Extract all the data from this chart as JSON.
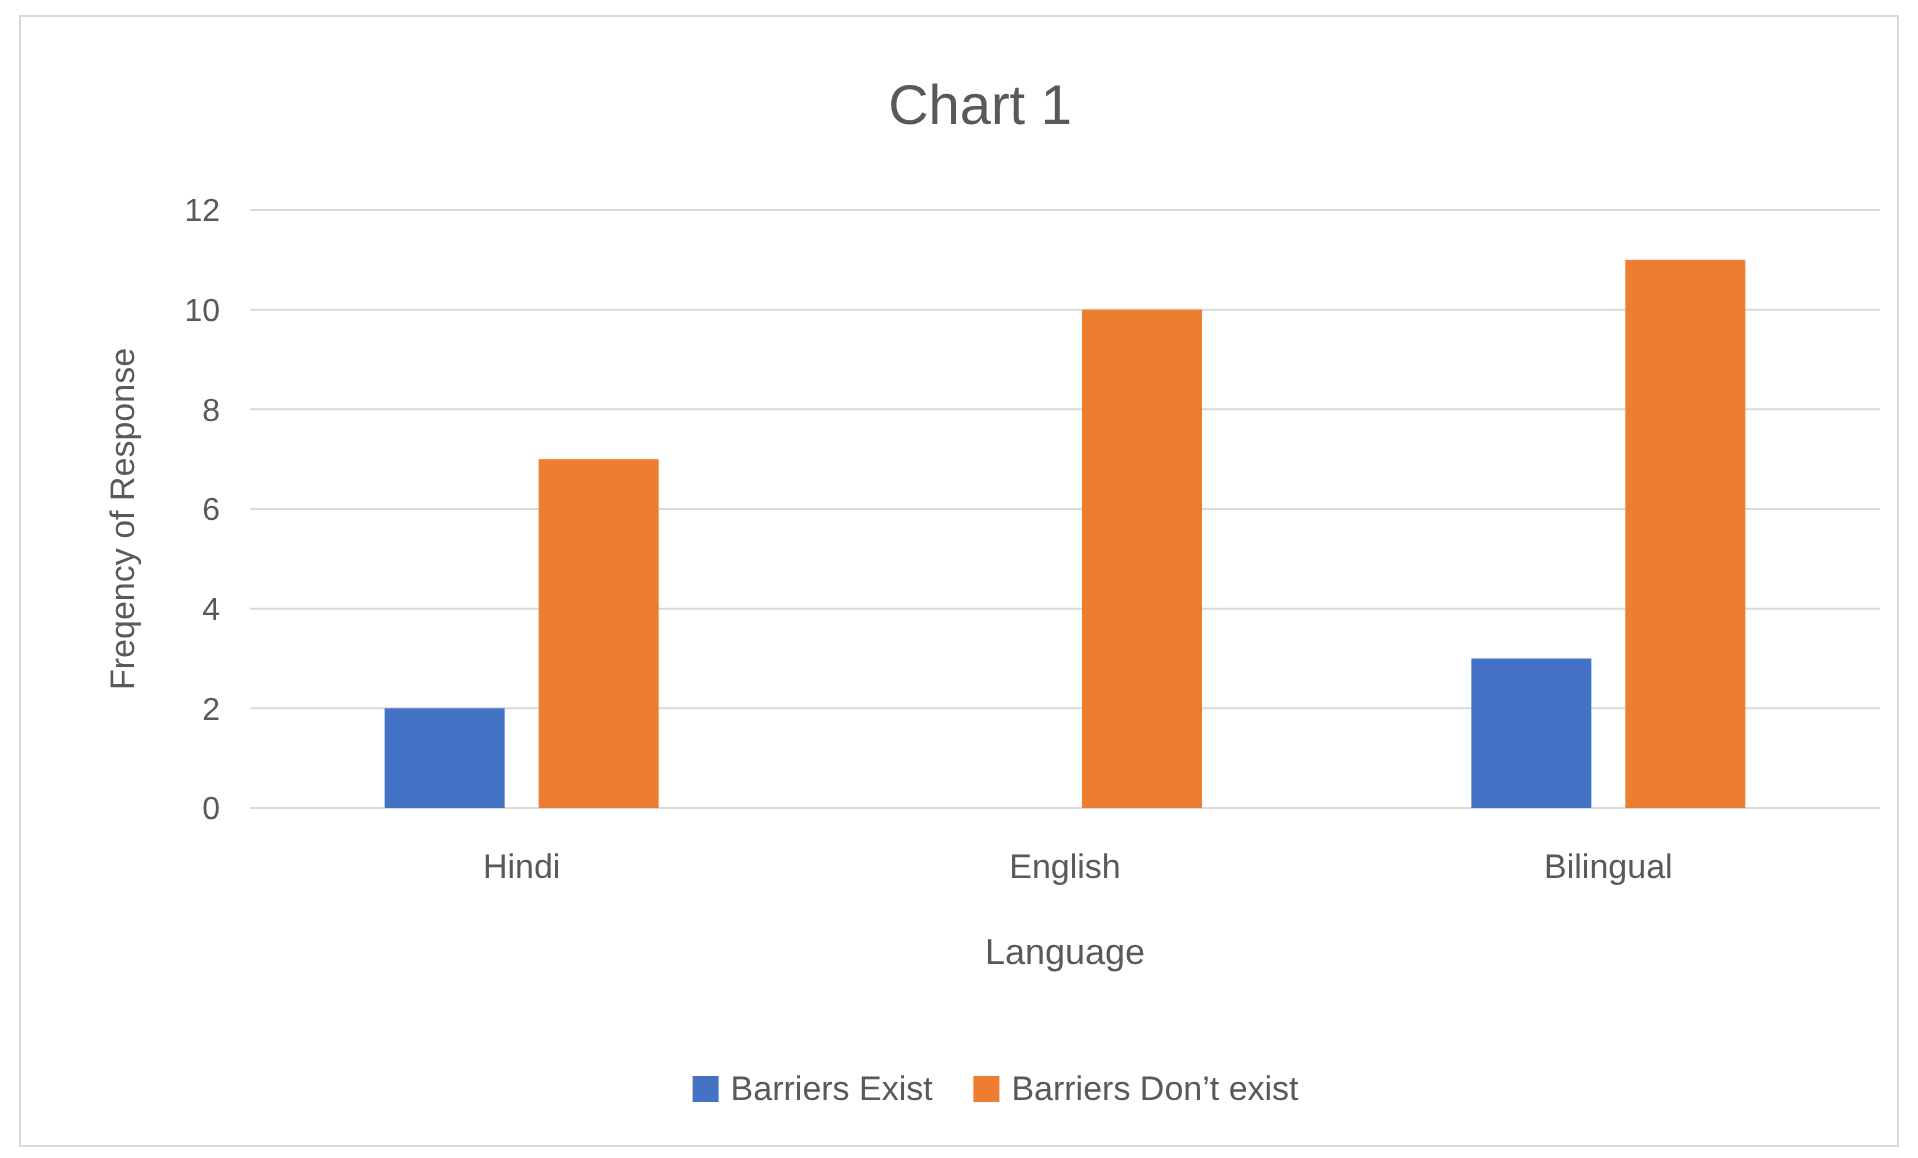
{
  "chart_data": {
    "type": "bar",
    "title": "Chart 1",
    "xlabel": "Language",
    "ylabel": "Freqency of Response",
    "categories": [
      "Hindi",
      "English",
      "Bilingual"
    ],
    "series": [
      {
        "name": "Barriers Exist",
        "color": "#4472c4",
        "values": [
          2,
          0,
          3
        ]
      },
      {
        "name": "Barriers Don’t exist",
        "color": "#ed7d31",
        "values": [
          7,
          10,
          11
        ]
      }
    ],
    "ylim": [
      0,
      12
    ],
    "yticks": [
      0,
      2,
      4,
      6,
      8,
      10,
      12
    ],
    "grid": "y",
    "legend": "bottom"
  }
}
